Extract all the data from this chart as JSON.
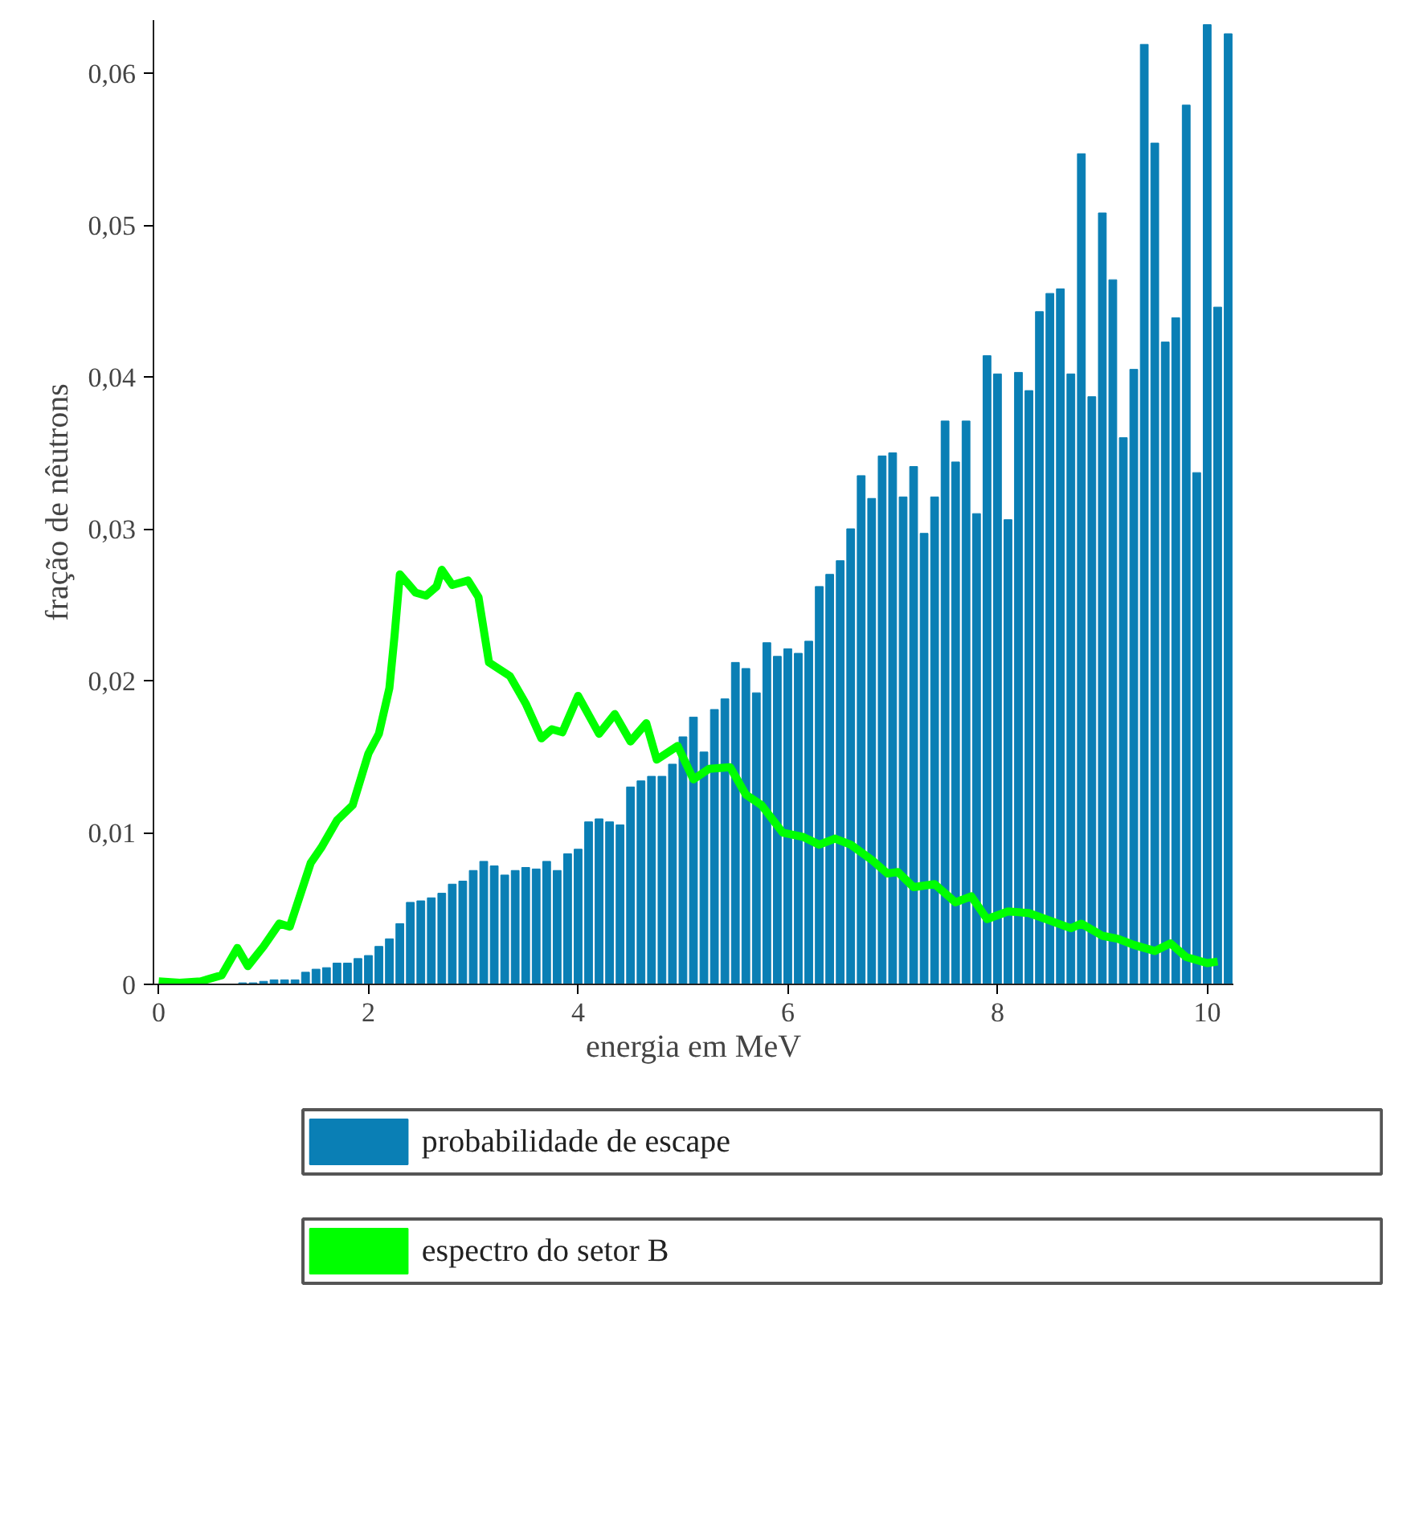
{
  "chart_data": {
    "type": "bar",
    "xlabel": "energia em MeV",
    "ylabel": "fração de nêutrons",
    "xlim": [
      -0.05,
      10.25
    ],
    "ylim": [
      0,
      0.0635
    ],
    "xticks": [
      0,
      2,
      4,
      6,
      8,
      10
    ],
    "yticks": [
      {
        "value": 0,
        "label": "0"
      },
      {
        "value": 0.01,
        "label": "0,01"
      },
      {
        "value": 0.02,
        "label": "0,02"
      },
      {
        "value": 0.03,
        "label": "0,03"
      },
      {
        "value": 0.04,
        "label": "0,04"
      },
      {
        "value": 0.05,
        "label": "0,05"
      },
      {
        "value": 0.06,
        "label": "0,06"
      }
    ],
    "grid": false,
    "legend": "bottom",
    "series": [
      {
        "name": "probabilidade de escape",
        "color": "#0a7fb5",
        "x": [
          0.8,
          0.9,
          1.0,
          1.1,
          1.2,
          1.3,
          1.4,
          1.5,
          1.6,
          1.7,
          1.8,
          1.9,
          2.0,
          2.1,
          2.2,
          2.3,
          2.4,
          2.5,
          2.6,
          2.7,
          2.8,
          2.9,
          3.0,
          3.1,
          3.2,
          3.3,
          3.4,
          3.5,
          3.6,
          3.7,
          3.8,
          3.9,
          4.0,
          4.1,
          4.2,
          4.3,
          4.4,
          4.5,
          4.6,
          4.7,
          4.8,
          4.9,
          5.0,
          5.1,
          5.2,
          5.3,
          5.4,
          5.5,
          5.6,
          5.7,
          5.8,
          5.9,
          6.0,
          6.1,
          6.2,
          6.3,
          6.4,
          6.5,
          6.6,
          6.7,
          6.8,
          6.9,
          7.0,
          7.1,
          7.2,
          7.3,
          7.4,
          7.5,
          7.6,
          7.7,
          7.8,
          7.9,
          8.0,
          8.1,
          8.2,
          8.3,
          8.4,
          8.5,
          8.6,
          8.7,
          8.8,
          8.9,
          9.0,
          9.1,
          9.2,
          9.3,
          9.4,
          9.5,
          9.6,
          9.7,
          9.8,
          9.9,
          10.0,
          10.1,
          10.2
        ],
        "values": [
          0.0001,
          0.0001,
          0.0002,
          0.0003,
          0.0003,
          0.0003,
          0.0008,
          0.001,
          0.0011,
          0.0014,
          0.0014,
          0.0017,
          0.0019,
          0.0025,
          0.003,
          0.004,
          0.0054,
          0.0055,
          0.0057,
          0.006,
          0.0066,
          0.0068,
          0.0075,
          0.0081,
          0.0078,
          0.0072,
          0.0075,
          0.0077,
          0.0076,
          0.0081,
          0.0075,
          0.0086,
          0.0089,
          0.0107,
          0.0109,
          0.0107,
          0.0105,
          0.013,
          0.0134,
          0.0137,
          0.0137,
          0.0145,
          0.0163,
          0.0176,
          0.0153,
          0.0181,
          0.0188,
          0.0212,
          0.0208,
          0.0192,
          0.0225,
          0.0216,
          0.0221,
          0.0218,
          0.0226,
          0.0262,
          0.027,
          0.0279,
          0.03,
          0.0335,
          0.032,
          0.0348,
          0.035,
          0.0321,
          0.0341,
          0.0297,
          0.0321,
          0.0371,
          0.0344,
          0.0371,
          0.031,
          0.0414,
          0.0402,
          0.0306,
          0.0403,
          0.0391,
          0.0443,
          0.0455,
          0.0458,
          0.0402,
          0.0547,
          0.0387,
          0.0508,
          0.0464,
          0.036,
          0.0405,
          0.0619,
          0.0554,
          0.0423,
          0.0439,
          0.0579,
          0.0337,
          0.0632,
          0.0446,
          0.0626
        ]
      },
      {
        "name": "espectro do setor B",
        "type": "line",
        "color": "#00ff00",
        "x": [
          0,
          0.2,
          0.4,
          0.6,
          0.75,
          0.85,
          1.0,
          1.15,
          1.25,
          1.45,
          1.55,
          1.7,
          1.85,
          2.0,
          2.1,
          2.2,
          2.25,
          2.3,
          2.45,
          2.55,
          2.65,
          2.7,
          2.8,
          2.95,
          3.05,
          3.15,
          3.35,
          3.5,
          3.65,
          3.75,
          3.85,
          4.0,
          4.2,
          4.35,
          4.5,
          4.65,
          4.75,
          4.95,
          5.1,
          5.25,
          5.45,
          5.6,
          5.75,
          5.95,
          6.15,
          6.3,
          6.45,
          6.6,
          6.8,
          6.95,
          7.05,
          7.2,
          7.4,
          7.6,
          7.75,
          7.9,
          8.1,
          8.3,
          8.5,
          8.7,
          8.8,
          9.0,
          9.15,
          9.3,
          9.5,
          9.65,
          9.8,
          10.0,
          10.1
        ],
        "values": [
          0.0002,
          0.0001,
          0.0002,
          0.0006,
          0.0024,
          0.0012,
          0.0025,
          0.004,
          0.0038,
          0.008,
          0.009,
          0.0108,
          0.0118,
          0.0152,
          0.0165,
          0.0195,
          0.023,
          0.027,
          0.0258,
          0.0256,
          0.0262,
          0.0273,
          0.0263,
          0.0266,
          0.0255,
          0.0212,
          0.0203,
          0.0185,
          0.0162,
          0.0168,
          0.0166,
          0.019,
          0.0165,
          0.0178,
          0.016,
          0.0172,
          0.0148,
          0.0157,
          0.0135,
          0.0142,
          0.0143,
          0.0125,
          0.0118,
          0.01,
          0.0097,
          0.0092,
          0.0096,
          0.0092,
          0.0082,
          0.0073,
          0.0074,
          0.0064,
          0.0066,
          0.0054,
          0.0058,
          0.0043,
          0.0048,
          0.0047,
          0.0042,
          0.0037,
          0.004,
          0.0032,
          0.003,
          0.0026,
          0.0022,
          0.0027,
          0.0018,
          0.0014,
          0.0015
        ]
      }
    ]
  }
}
